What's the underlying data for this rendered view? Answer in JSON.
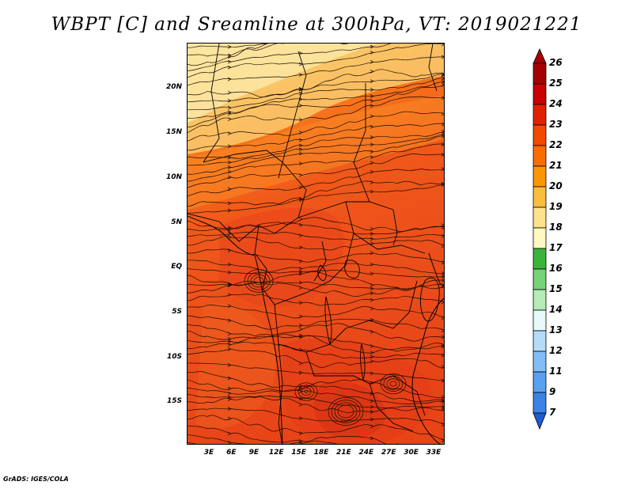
{
  "title": "WBPT [C] and Sreamline at 300hPa, VT: 2019021221",
  "credit": "GrADS: IGES/COLA",
  "map": {
    "lat_labels": [
      "20N",
      "15N",
      "10N",
      "5N",
      "EQ",
      "5S",
      "10S",
      "15S"
    ],
    "lon_labels": [
      "3E",
      "6E",
      "9E",
      "12E",
      "15E",
      "18E",
      "21E",
      "24E",
      "27E",
      "30E",
      "33E"
    ]
  },
  "colorbar": {
    "labels": [
      "26",
      "25",
      "24",
      "23",
      "22",
      "21",
      "20",
      "19",
      "18",
      "17",
      "16",
      "15",
      "14",
      "13",
      "12",
      "11",
      "9",
      "7"
    ],
    "colors": [
      "#a50000",
      "#c80000",
      "#e02000",
      "#f04a00",
      "#f86e00",
      "#fa9600",
      "#fbbd3c",
      "#fde28c",
      "#fff8c0",
      "#3cb43c",
      "#78d278",
      "#b4ecb4",
      "#e6fafa",
      "#b4dcfa",
      "#82bef5",
      "#5aa0f0",
      "#3c82e6",
      "#1e5ad2"
    ],
    "top_color": "#a50000",
    "bottom_color": "#1e5ad2"
  }
}
